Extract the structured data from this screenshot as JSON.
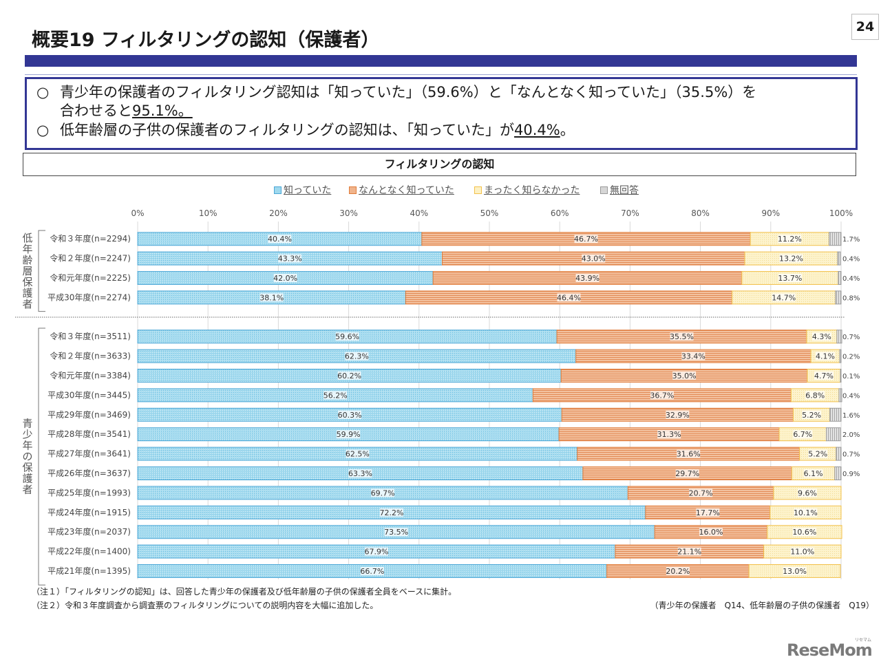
{
  "header": {
    "title": "概要19 フィルタリングの認知（保護者）",
    "page_number": "24"
  },
  "summary": {
    "bullet": "○",
    "items": [
      {
        "line1": "青少年の保護者のフィルタリング認知は「知っていた」（59.6%）と「なんとなく知っていた」（35.5%）を",
        "line2_prefix": "合わせると",
        "line2_highlight": "95.1%。"
      },
      {
        "prefix": "低年齢層の子供の保護者のフィルタリングの認知は、「知っていた」が",
        "highlight": "40.4%",
        "suffix": "。"
      }
    ]
  },
  "notes": [
    "（注１）「フィルタリングの認知」は、回答した青少年の保護者及び低年齢層の子供の保護者全員をベースに集計。",
    "（注２）令和３年度調査から調査票のフィルタリングについての説明内容を大幅に追加した。"
  ],
  "source": "（青少年の保護者　Q14、低年齢層の子供の保護者　Q19）",
  "logo": {
    "text": "ReseMom",
    "kana": "リセマム"
  },
  "chart_data": {
    "type": "bar",
    "orientation": "horizontal",
    "stacked": "100%",
    "title": "フィルタリングの認知",
    "xlabel": "",
    "ylabel": "",
    "xlim": [
      0,
      100
    ],
    "x_ticks": [
      "0%",
      "10%",
      "20%",
      "30%",
      "40%",
      "50%",
      "60%",
      "70%",
      "80%",
      "90%",
      "100%"
    ],
    "grid": true,
    "legend_position": "top-center",
    "series": [
      {
        "name": "知っていた",
        "color": "#9fd9ee",
        "edge": "#4aa6d6"
      },
      {
        "name": "なんとなく知っていた",
        "color": "#f0b48c",
        "edge": "#e07b39"
      },
      {
        "name": "まったく知らなかった",
        "color": "#fdf1c4",
        "edge": "#f2c04a"
      },
      {
        "name": "無回答",
        "color": "#d6d6d6",
        "edge": "#9a9a9a"
      }
    ],
    "groups": [
      {
        "label": "低年齢層保護者",
        "rows": [
          {
            "category": "令和３年度(n=2294)",
            "values": [
              40.4,
              46.7,
              11.2,
              1.7
            ]
          },
          {
            "category": "令和２年度(n=2247)",
            "values": [
              43.3,
              43.0,
              13.2,
              0.4
            ]
          },
          {
            "category": "令和元年度(n=2225)",
            "values": [
              42.0,
              43.9,
              13.7,
              0.4
            ]
          },
          {
            "category": "平成30年度(n=2274)",
            "values": [
              38.1,
              46.4,
              14.7,
              0.8
            ]
          }
        ]
      },
      {
        "label": "青少年の保護者",
        "rows": [
          {
            "category": "令和３年度(n=3511)",
            "values": [
              59.6,
              35.5,
              4.3,
              0.7
            ]
          },
          {
            "category": "令和２年度(n=3633)",
            "values": [
              62.3,
              33.4,
              4.1,
              0.2
            ]
          },
          {
            "category": "令和元年度(n=3384)",
            "values": [
              60.2,
              35.0,
              4.7,
              0.1
            ]
          },
          {
            "category": "平成30年度(n=3445)",
            "values": [
              56.2,
              36.7,
              6.8,
              0.4
            ]
          },
          {
            "category": "平成29年度(n=3469)",
            "values": [
              60.3,
              32.9,
              5.2,
              1.6
            ]
          },
          {
            "category": "平成28年度(n=3541)",
            "values": [
              59.9,
              31.3,
              6.7,
              2.0
            ]
          },
          {
            "category": "平成27年度(n=3641)",
            "values": [
              62.5,
              31.6,
              5.2,
              0.7
            ]
          },
          {
            "category": "平成26年度(n=3637)",
            "values": [
              63.3,
              29.7,
              6.1,
              0.9
            ]
          },
          {
            "category": "平成25年度(n=1993)",
            "values": [
              69.7,
              20.7,
              9.6,
              null
            ]
          },
          {
            "category": "平成24年度(n=1915)",
            "values": [
              72.2,
              17.7,
              10.1,
              null
            ]
          },
          {
            "category": "平成23年度(n=2037)",
            "values": [
              73.5,
              16.0,
              10.6,
              null
            ]
          },
          {
            "category": "平成22年度(n=1400)",
            "values": [
              67.9,
              21.1,
              11.0,
              null
            ]
          },
          {
            "category": "平成21年度(n=1395)",
            "values": [
              66.7,
              20.2,
              13.0,
              null
            ]
          }
        ]
      }
    ]
  }
}
